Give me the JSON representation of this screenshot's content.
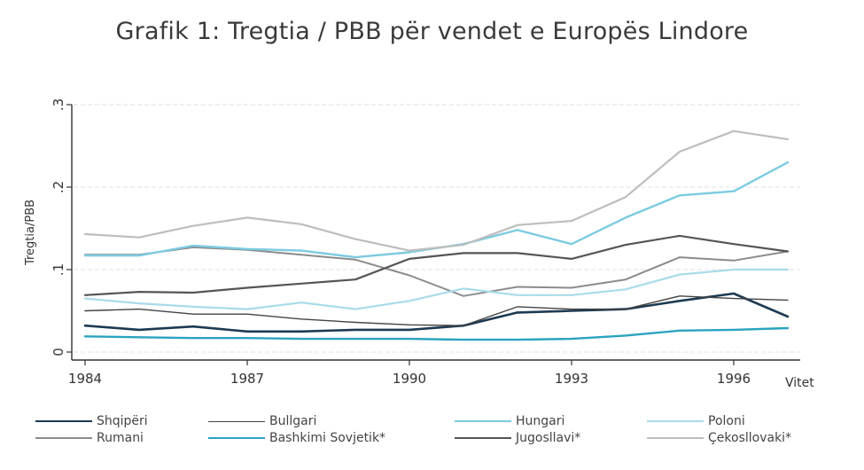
{
  "chart_data": {
    "type": "line",
    "title": "Grafik 1: Tregtia / PBB për vendet e Europës Lindore",
    "xlabel": "Vitet",
    "ylabel": "Tregtia/PBB",
    "xlim": [
      1984,
      1997
    ],
    "ylim": [
      0,
      0.3
    ],
    "x_ticks": [
      1984,
      1987,
      1990,
      1993,
      1996
    ],
    "x_tick_labels": [
      "1984",
      "1987",
      "1990",
      "1993",
      "1996"
    ],
    "y_ticks": [
      0,
      0.1,
      0.2,
      0.3
    ],
    "y_tick_labels": [
      "0",
      ".1",
      ".2",
      ".3"
    ],
    "grid": "horizontal dashed",
    "legend_position": "bottom",
    "x": [
      1984,
      1985,
      1986,
      1987,
      1988,
      1989,
      1990,
      1991,
      1992,
      1993,
      1994,
      1995,
      1996,
      1997
    ],
    "series": [
      {
        "name": "Shqipëri",
        "color": "#1d3a52",
        "width": 2.6,
        "values": [
          0.032,
          0.027,
          0.031,
          0.025,
          0.025,
          0.027,
          0.027,
          0.032,
          0.048,
          0.05,
          0.052,
          0.062,
          0.071,
          0.043
        ]
      },
      {
        "name": "Rumani",
        "color": "#8c8c8c",
        "width": 2.0,
        "values": [
          0.118,
          0.118,
          0.127,
          0.124,
          0.118,
          0.112,
          0.093,
          0.068,
          0.079,
          0.078,
          0.088,
          0.115,
          0.111,
          0.122
        ]
      },
      {
        "name": "Bullgari",
        "color": "#444444",
        "width": 1.4,
        "values": [
          0.05,
          0.052,
          0.046,
          0.046,
          0.04,
          0.036,
          0.033,
          0.032,
          0.055,
          0.052,
          0.052,
          0.068,
          0.065,
          0.063
        ]
      },
      {
        "name": "Bashkimi Sovjetik*",
        "color": "#2aa3bf",
        "width": 2.4,
        "values": [
          0.019,
          0.018,
          0.017,
          0.017,
          0.016,
          0.016,
          0.016,
          0.015,
          0.015,
          0.016,
          0.02,
          0.026,
          0.027,
          0.029
        ]
      },
      {
        "name": "Hungari",
        "color": "#7ccbe0",
        "width": 2.4,
        "values": [
          0.117,
          0.117,
          0.129,
          0.125,
          0.123,
          0.115,
          0.121,
          0.131,
          0.148,
          0.131,
          0.163,
          0.19,
          0.195,
          0.23
        ]
      },
      {
        "name": "Jugosllavi*",
        "color": "#555555",
        "width": 2.2,
        "values": [
          0.069,
          0.073,
          0.072,
          0.078,
          0.083,
          0.088,
          0.113,
          0.12,
          0.12,
          0.113,
          0.13,
          0.141,
          0.131,
          0.122
        ]
      },
      {
        "name": "Poloni",
        "color": "#a9dbe9",
        "width": 2.2,
        "values": [
          0.065,
          0.059,
          0.055,
          0.052,
          0.06,
          0.052,
          0.062,
          0.077,
          0.069,
          0.069,
          0.076,
          0.094,
          0.1,
          0.1
        ]
      },
      {
        "name": "Çekosllovaki*",
        "color": "#bdbdbd",
        "width": 2.2,
        "values": [
          0.143,
          0.139,
          0.153,
          0.163,
          0.155,
          0.137,
          0.123,
          0.13,
          0.154,
          0.159,
          0.188,
          0.243,
          0.268,
          0.258
        ]
      }
    ]
  }
}
